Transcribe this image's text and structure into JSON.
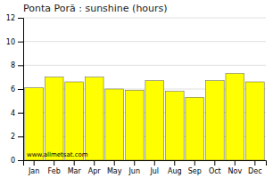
{
  "chart_data": {
    "type": "bar",
    "title": "Ponta Porã : sunshine (hours)",
    "categories": [
      "Jan",
      "Feb",
      "Mar",
      "Apr",
      "May",
      "Jun",
      "Jul",
      "Aug",
      "Sep",
      "Oct",
      "Nov",
      "Dec"
    ],
    "values": [
      6.1,
      7.0,
      6.6,
      7.0,
      6.0,
      5.9,
      6.7,
      5.8,
      5.3,
      6.7,
      7.3,
      6.6
    ],
    "color": "#FFFF00",
    "ylim": [
      0,
      12
    ],
    "yticks": [
      0,
      2,
      4,
      6,
      8,
      10,
      12
    ],
    "grid": true,
    "annotations": [
      "www.allmetsat.com"
    ]
  }
}
